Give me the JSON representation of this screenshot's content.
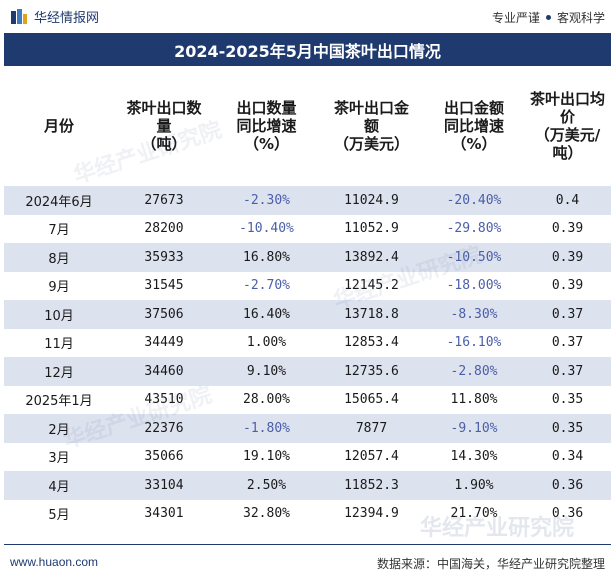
{
  "topbar": {
    "brand": "华经情报网",
    "slogan_left": "专业严谨",
    "slogan_right": "客观科学"
  },
  "title": "2024-2025年5月中国茶叶出口情况",
  "columns": [
    "月份",
    "茶叶出口数\n量\n（吨）",
    "出口数量\n同比增速\n（%）",
    "茶叶出口金\n额\n（万美元）",
    "出口金额\n同比增速\n（%）",
    "茶叶出口均\n价\n（万美元/\n吨）"
  ],
  "rows": [
    {
      "month": "2024年6月",
      "qty": "27673",
      "qty_yoy": "-2.30%",
      "amount": "11024.9",
      "amount_yoy": "-20.40%",
      "price": "0.4"
    },
    {
      "month": "7月",
      "qty": "28200",
      "qty_yoy": "-10.40%",
      "amount": "11052.9",
      "amount_yoy": "-29.80%",
      "price": "0.39"
    },
    {
      "month": "8月",
      "qty": "35933",
      "qty_yoy": "16.80%",
      "amount": "13892.4",
      "amount_yoy": "-10.50%",
      "price": "0.39"
    },
    {
      "month": "9月",
      "qty": "31545",
      "qty_yoy": "-2.70%",
      "amount": "12145.2",
      "amount_yoy": "-18.00%",
      "price": "0.39"
    },
    {
      "month": "10月",
      "qty": "37506",
      "qty_yoy": "16.40%",
      "amount": "13718.8",
      "amount_yoy": "-8.30%",
      "price": "0.37"
    },
    {
      "month": "11月",
      "qty": "34449",
      "qty_yoy": "1.00%",
      "amount": "12853.4",
      "amount_yoy": "-16.10%",
      "price": "0.37"
    },
    {
      "month": "12月",
      "qty": "34460",
      "qty_yoy": "9.10%",
      "amount": "12735.6",
      "amount_yoy": "-2.80%",
      "price": "0.37"
    },
    {
      "month": "2025年1月",
      "qty": "43510",
      "qty_yoy": "28.00%",
      "amount": "15065.4",
      "amount_yoy": "11.80%",
      "price": "0.35"
    },
    {
      "month": "2月",
      "qty": "22376",
      "qty_yoy": "-1.80%",
      "amount": "7877",
      "amount_yoy": "-9.10%",
      "price": "0.35"
    },
    {
      "month": "3月",
      "qty": "35066",
      "qty_yoy": "19.10%",
      "amount": "12057.4",
      "amount_yoy": "14.30%",
      "price": "0.34"
    },
    {
      "month": "4月",
      "qty": "33104",
      "qty_yoy": "2.50%",
      "amount": "11852.3",
      "amount_yoy": "1.90%",
      "price": "0.36"
    },
    {
      "month": "5月",
      "qty": "34301",
      "qty_yoy": "32.80%",
      "amount": "12394.9",
      "amount_yoy": "21.70%",
      "price": "0.36"
    }
  ],
  "watermark": "华经产业研究院",
  "footer": {
    "website": "www.huaon.com",
    "source": "数据来源：中国海关，华经产业研究院整理"
  },
  "colors": {
    "brand_navy": "#1f3a6e",
    "stripe": "#dde2ef",
    "negative": "#4a5fa8"
  }
}
